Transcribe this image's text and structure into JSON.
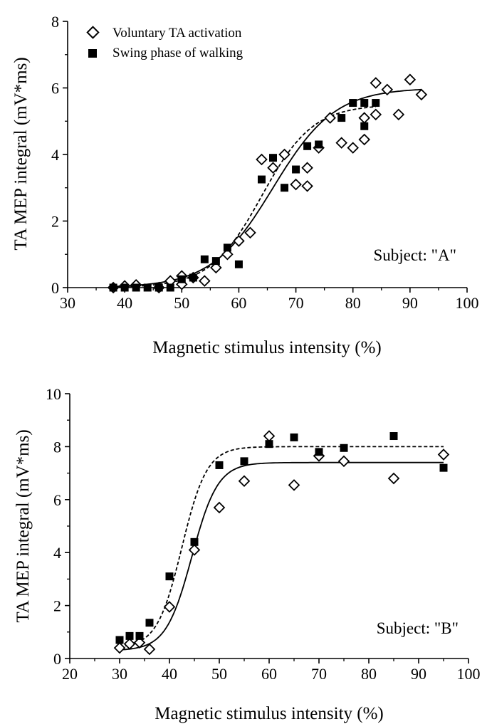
{
  "legend": {
    "voluntary_label": "Voluntary TA activation",
    "swing_label": "Swing phase of walking"
  },
  "chart_data": [
    {
      "type": "scatter",
      "xlabel": "Magnetic stimulus intensity (%)",
      "ylabel": "TA MEP integral (mV*ms)",
      "xlim": [
        30,
        100
      ],
      "ylim": [
        0,
        8
      ],
      "xticks": [
        "30",
        "40",
        "50",
        "60",
        "70",
        "80",
        "90",
        "100"
      ],
      "yticks": [
        "0",
        "2",
        "4",
        "6",
        "8"
      ],
      "xtick_values": [
        30,
        40,
        50,
        60,
        70,
        80,
        90,
        100
      ],
      "ytick_values": [
        0,
        2,
        4,
        6,
        8
      ],
      "annotation": "Subject: \"A\"",
      "series": [
        {
          "name": "Voluntary TA activation",
          "marker": "open-diamond",
          "points": [
            [
              38,
              0
            ],
            [
              40,
              0.05
            ],
            [
              42,
              0.08
            ],
            [
              46,
              0
            ],
            [
              48,
              0.2
            ],
            [
              50,
              0.1
            ],
            [
              50,
              0.35
            ],
            [
              52,
              0.3
            ],
            [
              54,
              0.2
            ],
            [
              56,
              0.6
            ],
            [
              58,
              1.0
            ],
            [
              60,
              1.4
            ],
            [
              62,
              1.65
            ],
            [
              64,
              3.85
            ],
            [
              66,
              3.6
            ],
            [
              68,
              4.0
            ],
            [
              70,
              3.1
            ],
            [
              72,
              3.05
            ],
            [
              72,
              3.6
            ],
            [
              74,
              4.2
            ],
            [
              76,
              5.1
            ],
            [
              78,
              4.35
            ],
            [
              80,
              4.2
            ],
            [
              82,
              4.45
            ],
            [
              82,
              5.1
            ],
            [
              84,
              5.2
            ],
            [
              84,
              6.15
            ],
            [
              86,
              5.95
            ],
            [
              88,
              5.2
            ],
            [
              90,
              6.25
            ],
            [
              92,
              5.8
            ]
          ]
        },
        {
          "name": "Swing phase of walking",
          "marker": "filled-square",
          "points": [
            [
              38,
              0
            ],
            [
              40,
              0
            ],
            [
              42,
              0
            ],
            [
              44,
              0
            ],
            [
              46,
              0
            ],
            [
              48,
              0
            ],
            [
              50,
              0.25
            ],
            [
              52,
              0.3
            ],
            [
              54,
              0.85
            ],
            [
              56,
              0.8
            ],
            [
              58,
              1.2
            ],
            [
              60,
              0.7
            ],
            [
              64,
              3.25
            ],
            [
              66,
              3.9
            ],
            [
              68,
              3.0
            ],
            [
              70,
              3.55
            ],
            [
              72,
              4.25
            ],
            [
              74,
              4.3
            ],
            [
              78,
              5.1
            ],
            [
              80,
              5.55
            ],
            [
              82,
              5.55
            ],
            [
              82,
              4.85
            ],
            [
              84,
              5.55
            ]
          ]
        }
      ],
      "fits": [
        {
          "series": "Voluntary TA activation",
          "style": "solid",
          "min": 0,
          "max": 6.0,
          "x50": 66.0,
          "slope": 5.4
        },
        {
          "series": "Swing phase of walking",
          "style": "dashed",
          "min": 0,
          "max": 5.5,
          "x50": 64.0,
          "slope": 4.5
        }
      ]
    },
    {
      "type": "scatter",
      "xlabel": "Magnetic stimulus intensity (%)",
      "ylabel": "TA MEP integral (mV*ms)",
      "xlim": [
        20,
        100
      ],
      "ylim": [
        0,
        10
      ],
      "xticks": [
        "20",
        "30",
        "40",
        "50",
        "60",
        "70",
        "80",
        "90",
        "100"
      ],
      "yticks": [
        "0",
        "2",
        "4",
        "6",
        "8",
        "10"
      ],
      "xtick_values": [
        20,
        30,
        40,
        50,
        60,
        70,
        80,
        90,
        100
      ],
      "ytick_values": [
        0,
        2,
        4,
        6,
        8,
        10
      ],
      "annotation": "Subject: \"B\"",
      "series": [
        {
          "name": "Voluntary TA activation",
          "marker": "open-diamond",
          "points": [
            [
              30,
              0.4
            ],
            [
              32,
              0.55
            ],
            [
              34,
              0.6
            ],
            [
              36,
              0.35
            ],
            [
              40,
              1.95
            ],
            [
              45,
              4.1
            ],
            [
              50,
              5.7
            ],
            [
              55,
              6.7
            ],
            [
              60,
              8.4
            ],
            [
              65,
              6.55
            ],
            [
              70,
              7.65
            ],
            [
              75,
              7.45
            ],
            [
              85,
              6.8
            ],
            [
              95,
              7.7
            ]
          ]
        },
        {
          "name": "Swing phase of walking",
          "marker": "filled-square",
          "points": [
            [
              30,
              0.7
            ],
            [
              32,
              0.85
            ],
            [
              34,
              0.85
            ],
            [
              36,
              1.35
            ],
            [
              40,
              3.1
            ],
            [
              45,
              4.4
            ],
            [
              50,
              7.3
            ],
            [
              55,
              7.45
            ],
            [
              60,
              8.1
            ],
            [
              65,
              8.35
            ],
            [
              70,
              7.8
            ],
            [
              75,
              7.95
            ],
            [
              85,
              8.4
            ],
            [
              95,
              7.2
            ]
          ]
        }
      ],
      "fits": [
        {
          "series": "Voluntary TA activation",
          "style": "solid",
          "min": 0.3,
          "max": 7.4,
          "x50": 44.5,
          "slope": 2.6
        },
        {
          "series": "Swing phase of walking",
          "style": "dashed",
          "min": 0.4,
          "max": 8.0,
          "x50": 42.5,
          "slope": 2.5
        }
      ]
    }
  ]
}
